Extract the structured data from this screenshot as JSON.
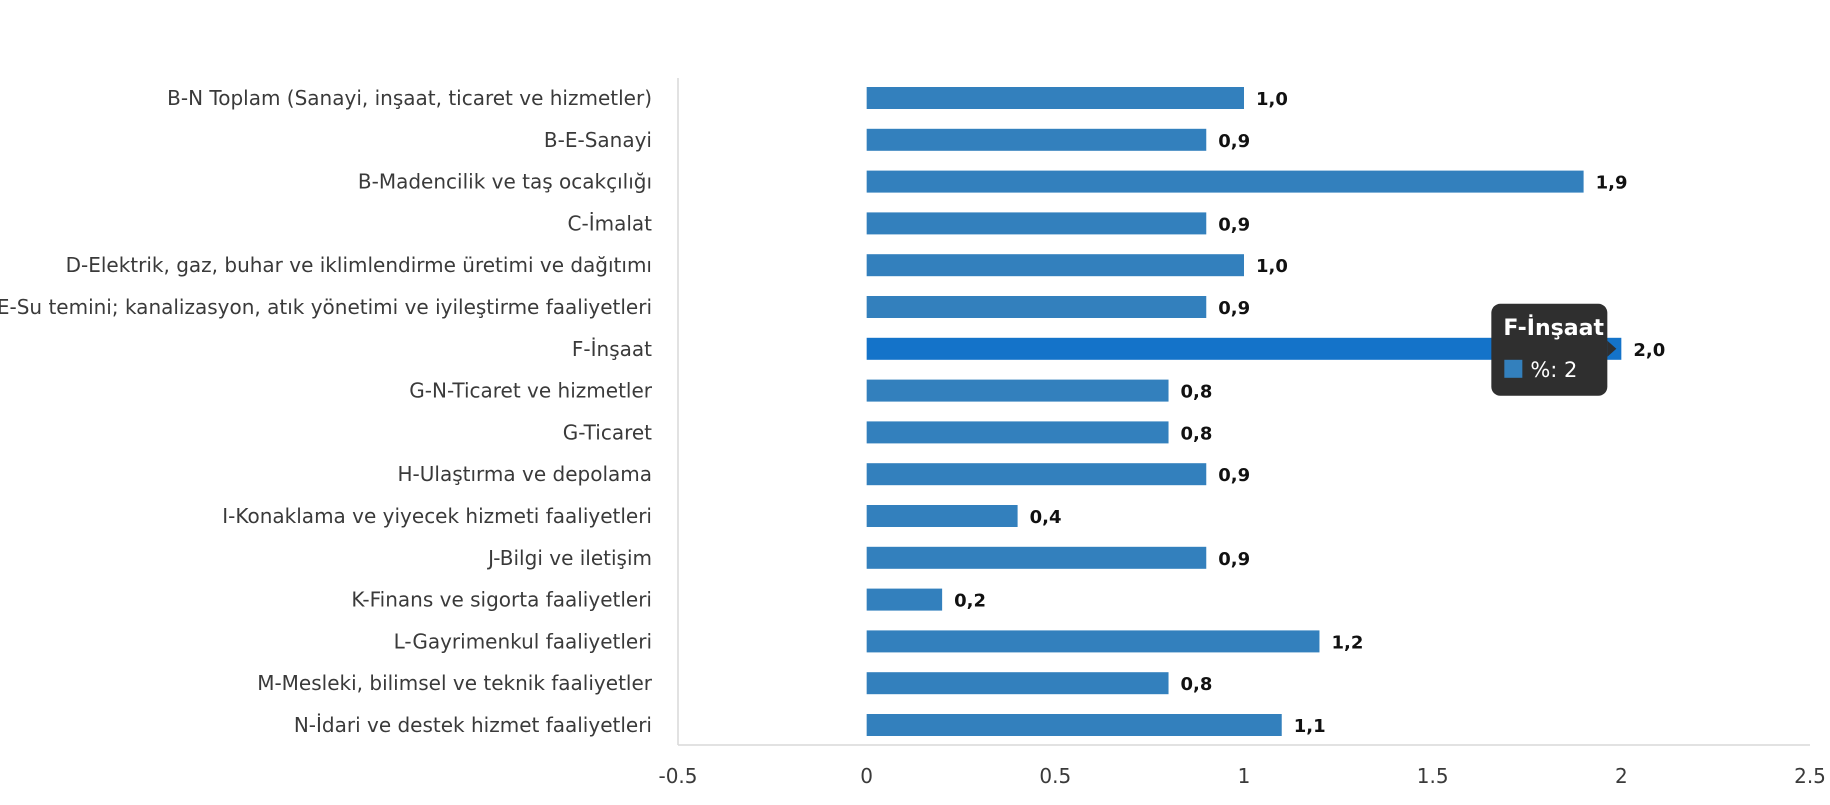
{
  "chart_data": {
    "type": "bar",
    "orientation": "horizontal",
    "categories": [
      "B-N Toplam (Sanayi, inşaat, ticaret ve hizmetler)",
      "B-E-Sanayi",
      "B-Madencilik ve taş ocakçılığı",
      "C-İmalat",
      "D-Elektrik, gaz, buhar ve iklimlendirme üretimi ve dağıtımı",
      "E-Su temini; kanalizasyon, atık yönetimi ve iyileştirme faaliyetleri",
      "F-İnşaat",
      "G-N-Ticaret ve hizmetler",
      "G-Ticaret",
      "H-Ulaştırma ve depolama",
      "I-Konaklama ve yiyecek hizmeti faaliyetleri",
      "J-Bilgi ve iletişim",
      "K-Finans ve sigorta faaliyetleri",
      "L-Gayrimenkul faaliyetleri",
      "M-Mesleki, bilimsel ve teknik faaliyetler",
      "N-İdari ve destek hizmet faaliyetleri"
    ],
    "series": [
      {
        "values": [
          1.0,
          0.9,
          1.9,
          0.9,
          1.0,
          0.9,
          2.0,
          0.8,
          0.8,
          0.9,
          0.4,
          0.9,
          0.2,
          1.2,
          0.8,
          1.1
        ]
      }
    ],
    "data_labels": [
      "1,0",
      "0,9",
      "1,9",
      "0,9",
      "1,0",
      "0,9",
      "2,0",
      "0,8",
      "0,8",
      "0,9",
      "0,4",
      "0,9",
      "0,2",
      "1,2",
      "0,8",
      "1,1"
    ],
    "xlim": [
      -0.5,
      2.5
    ],
    "xticks": [
      -0.5,
      0,
      0.5,
      1,
      1.5,
      2,
      2.5
    ],
    "xtick_labels": [
      "-0.5",
      "0",
      "0.5",
      "1",
      "1.5",
      "2",
      "2.5"
    ],
    "grid": false,
    "bar_color": "#3380bd",
    "highlight_color": "#1473c9",
    "highlighted_index": 6,
    "tooltip": {
      "title": "F-İnşaat",
      "text": "%: 2",
      "background": "#2f2f2f",
      "swatch_color": "#3380bd"
    }
  }
}
